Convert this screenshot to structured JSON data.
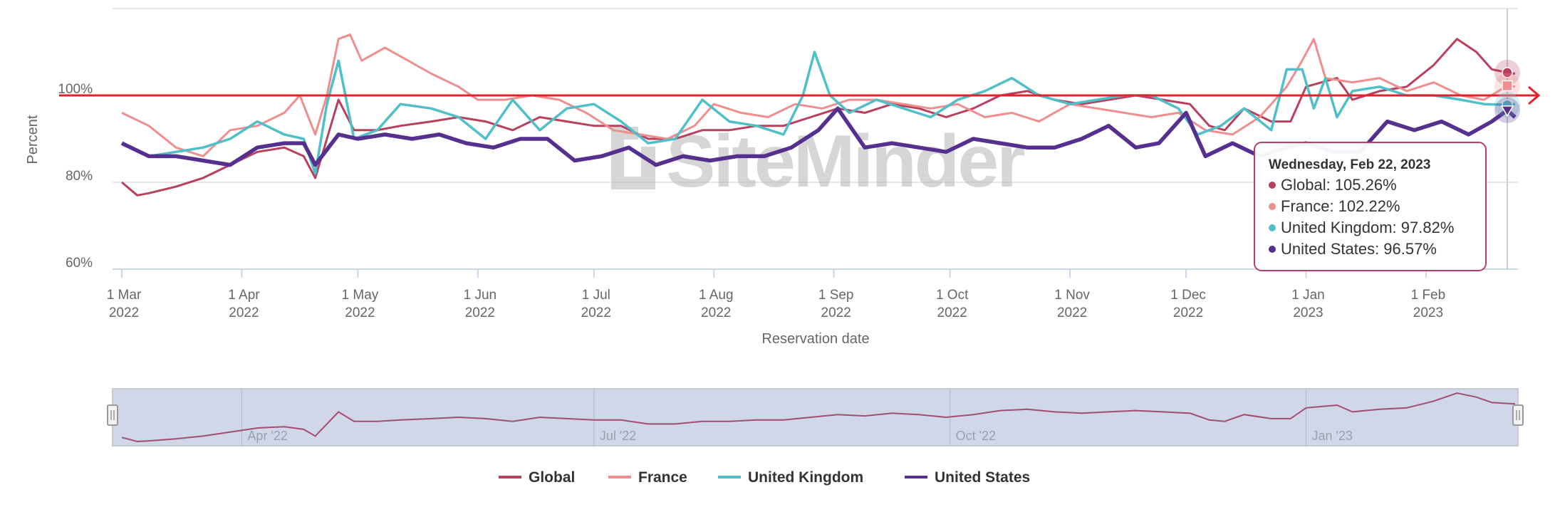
{
  "chart_data": {
    "type": "line",
    "title": "",
    "xlabel": "Reservation date",
    "ylabel": "Percent",
    "x_origin": "2022-03-01",
    "x_units": "days since 1 Mar 2022",
    "xlim": [
      -2.4,
      360.5
    ],
    "ylim": [
      60,
      120
    ],
    "y_ticks": [
      {
        "value": 60,
        "label": "60%"
      },
      {
        "value": 80,
        "label": "80%"
      },
      {
        "value": 100,
        "label": "100%"
      },
      {
        "value": 120,
        "label": ""
      }
    ],
    "x_ticks": [
      {
        "day": 0,
        "month": "1 Mar",
        "year": "2022"
      },
      {
        "day": 31,
        "month": "1 Apr",
        "year": "2022"
      },
      {
        "day": 61,
        "month": "1 May",
        "year": "2022"
      },
      {
        "day": 92,
        "month": "1 Jun",
        "year": "2022"
      },
      {
        "day": 122,
        "month": "1 Jul",
        "year": "2022"
      },
      {
        "day": 153,
        "month": "1 Aug",
        "year": "2022"
      },
      {
        "day": 184,
        "month": "1 Sep",
        "year": "2022"
      },
      {
        "day": 214,
        "month": "1 Oct",
        "year": "2022"
      },
      {
        "day": 245,
        "month": "1 Nov",
        "year": "2022"
      },
      {
        "day": 275,
        "month": "1 Dec",
        "year": "2022"
      },
      {
        "day": 306,
        "month": "1 Jan",
        "year": "2023"
      },
      {
        "day": 337,
        "month": "1 Feb",
        "year": "2023"
      }
    ],
    "grid": true,
    "reference_line": {
      "value": 100,
      "color": "#e3202b"
    },
    "legend_position": "bottom-center",
    "series": [
      {
        "name": "Global",
        "color": "#b8405e",
        "marker": "circle",
        "points": [
          [
            0,
            80
          ],
          [
            4,
            77
          ],
          [
            7,
            77.5
          ],
          [
            14,
            79
          ],
          [
            21,
            81
          ],
          [
            28,
            84
          ],
          [
            35,
            87
          ],
          [
            42,
            88
          ],
          [
            47,
            86
          ],
          [
            50,
            81
          ],
          [
            53,
            90
          ],
          [
            56,
            99
          ],
          [
            60,
            92
          ],
          [
            66,
            92
          ],
          [
            72,
            93
          ],
          [
            80,
            94
          ],
          [
            87,
            95
          ],
          [
            94,
            94
          ],
          [
            101,
            92
          ],
          [
            108,
            95
          ],
          [
            115,
            94
          ],
          [
            122,
            93
          ],
          [
            129,
            93
          ],
          [
            136,
            90
          ],
          [
            143,
            90
          ],
          [
            150,
            92
          ],
          [
            157,
            92
          ],
          [
            164,
            93
          ],
          [
            171,
            93
          ],
          [
            178,
            95
          ],
          [
            185,
            97
          ],
          [
            192,
            96
          ],
          [
            199,
            98
          ],
          [
            206,
            97
          ],
          [
            213,
            95
          ],
          [
            220,
            97
          ],
          [
            227,
            100
          ],
          [
            234,
            101
          ],
          [
            241,
            99
          ],
          [
            248,
            98
          ],
          [
            255,
            99
          ],
          [
            262,
            100
          ],
          [
            269,
            99
          ],
          [
            276,
            98
          ],
          [
            281,
            93
          ],
          [
            285,
            92
          ],
          [
            290,
            97
          ],
          [
            297,
            94
          ],
          [
            302,
            94
          ],
          [
            306,
            102
          ],
          [
            310,
            103
          ],
          [
            314,
            104
          ],
          [
            318,
            99
          ],
          [
            325,
            101
          ],
          [
            332,
            102
          ],
          [
            339,
            107
          ],
          [
            345,
            113
          ],
          [
            350,
            110
          ],
          [
            354,
            106
          ],
          [
            358,
            105.26
          ],
          [
            360,
            105
          ]
        ]
      },
      {
        "name": "France",
        "color": "#f08e8e",
        "marker": "square",
        "points": [
          [
            0,
            96
          ],
          [
            7,
            93
          ],
          [
            14,
            88
          ],
          [
            21,
            86
          ],
          [
            28,
            92
          ],
          [
            35,
            93
          ],
          [
            42,
            96
          ],
          [
            46,
            100
          ],
          [
            50,
            91
          ],
          [
            53,
            100
          ],
          [
            56,
            113
          ],
          [
            59,
            114
          ],
          [
            62,
            108
          ],
          [
            68,
            111
          ],
          [
            74,
            108
          ],
          [
            80,
            105
          ],
          [
            87,
            102
          ],
          [
            92,
            99
          ],
          [
            99,
            99
          ],
          [
            106,
            100
          ],
          [
            113,
            99
          ],
          [
            120,
            96
          ],
          [
            127,
            92
          ],
          [
            134,
            91
          ],
          [
            141,
            90
          ],
          [
            148,
            93
          ],
          [
            153,
            98
          ],
          [
            160,
            96
          ],
          [
            167,
            95
          ],
          [
            174,
            98
          ],
          [
            181,
            97
          ],
          [
            188,
            99
          ],
          [
            195,
            99
          ],
          [
            202,
            98
          ],
          [
            209,
            97
          ],
          [
            216,
            98
          ],
          [
            223,
            95
          ],
          [
            230,
            96
          ],
          [
            237,
            94
          ],
          [
            245,
            98
          ],
          [
            252,
            97
          ],
          [
            259,
            96
          ],
          [
            266,
            95
          ],
          [
            273,
            96
          ],
          [
            280,
            92
          ],
          [
            287,
            91
          ],
          [
            294,
            95
          ],
          [
            301,
            102
          ],
          [
            305,
            108
          ],
          [
            308,
            113
          ],
          [
            311,
            104
          ],
          [
            318,
            103
          ],
          [
            325,
            104
          ],
          [
            332,
            101
          ],
          [
            339,
            103
          ],
          [
            346,
            100
          ],
          [
            352,
            99
          ],
          [
            358,
            102.22
          ],
          [
            360,
            102
          ]
        ]
      },
      {
        "name": "United Kingdom",
        "color": "#4fbfc8",
        "marker": "circle",
        "points": [
          [
            0,
            89
          ],
          [
            7,
            86
          ],
          [
            14,
            87
          ],
          [
            21,
            88
          ],
          [
            28,
            90
          ],
          [
            35,
            94
          ],
          [
            42,
            91
          ],
          [
            47,
            90
          ],
          [
            50,
            82
          ],
          [
            53,
            98
          ],
          [
            56,
            108
          ],
          [
            60,
            90
          ],
          [
            66,
            92
          ],
          [
            72,
            98
          ],
          [
            80,
            97
          ],
          [
            87,
            95
          ],
          [
            94,
            90
          ],
          [
            101,
            99
          ],
          [
            108,
            92
          ],
          [
            115,
            97
          ],
          [
            122,
            98
          ],
          [
            129,
            94
          ],
          [
            136,
            89
          ],
          [
            143,
            90
          ],
          [
            150,
            99
          ],
          [
            157,
            94
          ],
          [
            164,
            93
          ],
          [
            171,
            91
          ],
          [
            176,
            100
          ],
          [
            179,
            110
          ],
          [
            183,
            100
          ],
          [
            188,
            96
          ],
          [
            195,
            99
          ],
          [
            202,
            97
          ],
          [
            209,
            95
          ],
          [
            216,
            99
          ],
          [
            223,
            101
          ],
          [
            230,
            104
          ],
          [
            237,
            100
          ],
          [
            245,
            98
          ],
          [
            252,
            99
          ],
          [
            259,
            100
          ],
          [
            266,
            100
          ],
          [
            273,
            97
          ],
          [
            278,
            91
          ],
          [
            284,
            93
          ],
          [
            290,
            97
          ],
          [
            297,
            92
          ],
          [
            301,
            106
          ],
          [
            305,
            106
          ],
          [
            308,
            97
          ],
          [
            311,
            104
          ],
          [
            314,
            95
          ],
          [
            318,
            101
          ],
          [
            325,
            102
          ],
          [
            332,
            100
          ],
          [
            339,
            100
          ],
          [
            346,
            99
          ],
          [
            352,
            98
          ],
          [
            358,
            97.82
          ],
          [
            360,
            98
          ]
        ]
      },
      {
        "name": "United States",
        "color": "#56308f",
        "marker": "triangle-down",
        "points": [
          [
            0,
            89
          ],
          [
            7,
            86
          ],
          [
            14,
            86
          ],
          [
            21,
            85
          ],
          [
            28,
            84
          ],
          [
            35,
            88
          ],
          [
            42,
            89
          ],
          [
            47,
            89
          ],
          [
            50,
            84
          ],
          [
            56,
            91
          ],
          [
            61,
            90
          ],
          [
            68,
            91
          ],
          [
            75,
            90
          ],
          [
            82,
            91
          ],
          [
            89,
            89
          ],
          [
            96,
            88
          ],
          [
            103,
            90
          ],
          [
            110,
            90
          ],
          [
            117,
            85
          ],
          [
            124,
            86
          ],
          [
            131,
            88
          ],
          [
            138,
            84
          ],
          [
            145,
            86
          ],
          [
            152,
            85
          ],
          [
            159,
            86
          ],
          [
            166,
            86
          ],
          [
            173,
            88
          ],
          [
            180,
            92
          ],
          [
            185,
            97
          ],
          [
            192,
            88
          ],
          [
            199,
            89
          ],
          [
            206,
            88
          ],
          [
            213,
            87
          ],
          [
            220,
            90
          ],
          [
            227,
            89
          ],
          [
            234,
            88
          ],
          [
            241,
            88
          ],
          [
            248,
            90
          ],
          [
            255,
            93
          ],
          [
            262,
            88
          ],
          [
            268,
            89
          ],
          [
            275,
            96
          ],
          [
            280,
            86
          ],
          [
            287,
            89
          ],
          [
            294,
            86
          ],
          [
            301,
            88
          ],
          [
            306,
            89
          ],
          [
            313,
            87
          ],
          [
            320,
            87
          ],
          [
            327,
            94
          ],
          [
            334,
            92
          ],
          [
            341,
            94
          ],
          [
            348,
            91
          ],
          [
            354,
            94
          ],
          [
            358,
            96.57
          ],
          [
            360,
            95
          ]
        ]
      }
    ]
  },
  "navigator": {
    "labels": [
      {
        "day": 31,
        "text": "Apr '22"
      },
      {
        "day": 122,
        "text": "Jul '22"
      },
      {
        "day": 214,
        "text": "Oct '22"
      },
      {
        "day": 306,
        "text": "Jan '23"
      }
    ],
    "fill_color": "#d0d7e8"
  },
  "tooltip": {
    "day": 358,
    "title": "Wednesday, Feb 22, 2023",
    "rows": [
      {
        "label": "Global: 105.26%",
        "color": "#b8405e"
      },
      {
        "label": "France: 102.22%",
        "color": "#f08e8e"
      },
      {
        "label": "United Kingdom: 97.82%",
        "color": "#4fbfc8"
      },
      {
        "label": "United States: 96.57%",
        "color": "#56308f"
      }
    ]
  },
  "watermark": "SiteMinder"
}
